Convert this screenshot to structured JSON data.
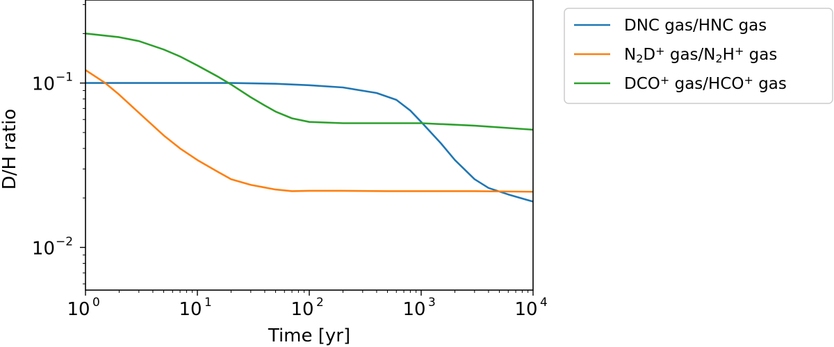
{
  "chart_data": {
    "type": "line",
    "xlabel": "Time [yr]",
    "ylabel": "D/H ratio",
    "x_scale": "log",
    "y_scale": "log",
    "xlim": [
      1,
      10000
    ],
    "ylim": [
      0.0055,
      0.32
    ],
    "grid": false,
    "legend_position": "outside-right",
    "x_ticks": [
      {
        "base": "10",
        "exp": "0",
        "value": 1
      },
      {
        "base": "10",
        "exp": "1",
        "value": 10
      },
      {
        "base": "10",
        "exp": "2",
        "value": 100
      },
      {
        "base": "10",
        "exp": "3",
        "value": 1000
      },
      {
        "base": "10",
        "exp": "4",
        "value": 10000
      }
    ],
    "y_ticks": [
      {
        "base": "10",
        "exp": "−2",
        "value": 0.01
      },
      {
        "base": "10",
        "exp": "−1",
        "value": 0.1
      }
    ],
    "series": [
      {
        "name": "DNC gas/HNC gas",
        "color": "#1f77b4",
        "x": [
          1,
          3,
          10,
          20,
          50,
          100,
          200,
          400,
          600,
          800,
          1000,
          1500,
          2000,
          3000,
          4000,
          6000,
          10000
        ],
        "y": [
          0.1,
          0.1,
          0.1,
          0.1,
          0.099,
          0.097,
          0.094,
          0.087,
          0.079,
          0.068,
          0.058,
          0.043,
          0.034,
          0.026,
          0.023,
          0.021,
          0.019
        ]
      },
      {
        "name": "N₂D⁺ gas/N₂H⁺ gas",
        "legend_parts": [
          {
            "t": "N",
            "s": "n"
          },
          {
            "t": "2",
            "s": "sub"
          },
          {
            "t": "D",
            "s": "n"
          },
          {
            "t": "+",
            "s": "sup"
          },
          {
            "t": " gas/N",
            "s": "n"
          },
          {
            "t": "2",
            "s": "sub"
          },
          {
            "t": "H",
            "s": "n"
          },
          {
            "t": "+",
            "s": "sup"
          },
          {
            "t": " gas",
            "s": "n"
          }
        ],
        "color": "#ff7f0e",
        "x": [
          1,
          1.5,
          2,
          3,
          5,
          7,
          10,
          15,
          20,
          30,
          50,
          70,
          100,
          200,
          500,
          1000,
          3000,
          10000
        ],
        "y": [
          0.12,
          0.1,
          0.085,
          0.066,
          0.048,
          0.04,
          0.034,
          0.029,
          0.026,
          0.024,
          0.0225,
          0.022,
          0.0221,
          0.0221,
          0.022,
          0.022,
          0.022,
          0.0218
        ]
      },
      {
        "name": "DCO⁺ gas/HCO⁺ gas",
        "legend_parts": [
          {
            "t": "DCO",
            "s": "n"
          },
          {
            "t": "+",
            "s": "sup"
          },
          {
            "t": " gas/HCO",
            "s": "n"
          },
          {
            "t": "+",
            "s": "sup"
          },
          {
            "t": " gas",
            "s": "n"
          }
        ],
        "color": "#2ca02c",
        "x": [
          1,
          2,
          3,
          5,
          7,
          10,
          15,
          20,
          30,
          40,
          50,
          70,
          100,
          200,
          500,
          1000,
          3000,
          10000
        ],
        "y": [
          0.2,
          0.19,
          0.18,
          0.16,
          0.145,
          0.128,
          0.11,
          0.098,
          0.082,
          0.073,
          0.067,
          0.061,
          0.058,
          0.057,
          0.057,
          0.057,
          0.055,
          0.052
        ]
      }
    ]
  }
}
